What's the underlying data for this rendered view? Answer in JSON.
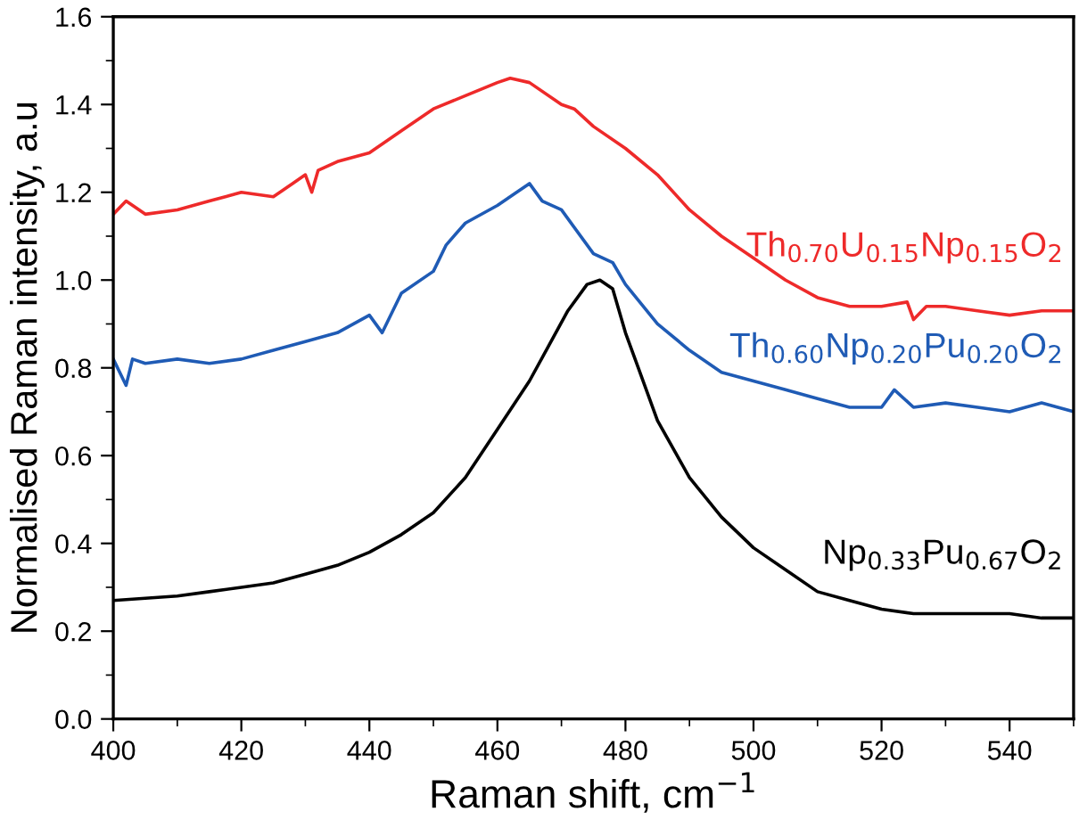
{
  "chart_data": {
    "type": "line",
    "xlabel": "Raman shift, cm$^{−1}$",
    "ylabel": "Normalised Raman intensity, a.u",
    "xlim": [
      400,
      550
    ],
    "ylim": [
      0,
      1.6
    ],
    "xticks": [
      400,
      420,
      440,
      460,
      480,
      500,
      520,
      540
    ],
    "yticks": [
      {
        "value": 0,
        "label": "0.0"
      },
      {
        "value": 0.2,
        "label": "0.2"
      },
      {
        "value": 0.4,
        "label": "0.4"
      },
      {
        "value": 0.6,
        "label": "0.6"
      },
      {
        "value": 0.8,
        "label": "0.8"
      },
      {
        "value": 1.0,
        "label": "1.0"
      },
      {
        "value": 1.2,
        "label": "1.2"
      },
      {
        "value": 1.4,
        "label": "1.4"
      },
      {
        "value": 1.6,
        "label": "1.6"
      }
    ],
    "grid": false,
    "legend": false,
    "marker": "none",
    "line_style": "solid",
    "series": [
      {
        "name": "Th$_{0.70}$U$_{0.15}$Np$_{0.15}$O$_{2}$",
        "color": "#ee2a2a",
        "x": [
          400,
          402,
          405,
          410,
          415,
          420,
          425,
          428,
          430,
          431,
          432,
          435,
          440,
          445,
          450,
          455,
          460,
          462,
          465,
          470,
          472,
          475,
          480,
          485,
          490,
          495,
          500,
          505,
          510,
          515,
          520,
          524,
          525,
          527,
          530,
          535,
          540,
          545,
          550
        ],
        "values": [
          1.15,
          1.18,
          1.15,
          1.16,
          1.18,
          1.2,
          1.19,
          1.22,
          1.24,
          1.2,
          1.25,
          1.27,
          1.29,
          1.34,
          1.39,
          1.42,
          1.45,
          1.46,
          1.45,
          1.4,
          1.39,
          1.35,
          1.3,
          1.24,
          1.16,
          1.1,
          1.05,
          1.0,
          0.96,
          0.94,
          0.94,
          0.95,
          0.91,
          0.94,
          0.94,
          0.93,
          0.92,
          0.93,
          0.93
        ]
      },
      {
        "name": "Th$_{0.60}$Np$_{0.20}$Pu$_{0.20}$O$_{2}$",
        "color": "#1f5bb5",
        "x": [
          400,
          402,
          403,
          405,
          410,
          415,
          420,
          425,
          430,
          435,
          440,
          442,
          445,
          450,
          452,
          455,
          460,
          463,
          465,
          467,
          470,
          475,
          478,
          480,
          485,
          490,
          495,
          500,
          505,
          510,
          515,
          520,
          522,
          525,
          530,
          535,
          540,
          545,
          550
        ],
        "values": [
          0.82,
          0.76,
          0.82,
          0.81,
          0.82,
          0.81,
          0.82,
          0.84,
          0.86,
          0.88,
          0.92,
          0.88,
          0.97,
          1.02,
          1.08,
          1.13,
          1.17,
          1.2,
          1.22,
          1.18,
          1.16,
          1.06,
          1.04,
          0.99,
          0.9,
          0.84,
          0.79,
          0.77,
          0.75,
          0.73,
          0.71,
          0.71,
          0.75,
          0.71,
          0.72,
          0.71,
          0.7,
          0.72,
          0.7
        ]
      },
      {
        "name": "Np$_{0.33}$Pu$_{0.67}$O$_{2}$",
        "color": "#000000",
        "x": [
          400,
          405,
          410,
          415,
          420,
          425,
          430,
          435,
          440,
          445,
          450,
          455,
          460,
          465,
          468,
          471,
          474,
          476,
          478,
          480,
          482,
          485,
          490,
          495,
          500,
          505,
          510,
          515,
          520,
          525,
          530,
          535,
          540,
          545,
          550
        ],
        "values": [
          0.27,
          0.275,
          0.28,
          0.29,
          0.3,
          0.31,
          0.33,
          0.35,
          0.38,
          0.42,
          0.47,
          0.55,
          0.66,
          0.77,
          0.85,
          0.93,
          0.99,
          1.0,
          0.98,
          0.88,
          0.8,
          0.68,
          0.55,
          0.46,
          0.39,
          0.34,
          0.29,
          0.27,
          0.25,
          0.24,
          0.24,
          0.24,
          0.24,
          0.23,
          0.23
        ]
      }
    ]
  }
}
